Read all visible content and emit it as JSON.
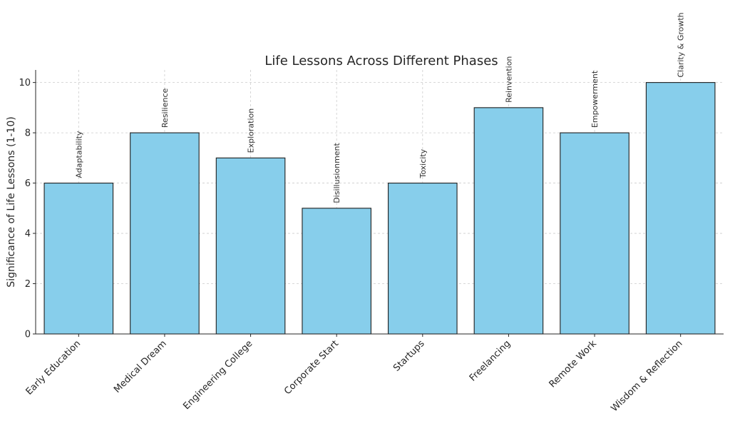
{
  "chart_data": {
    "type": "bar",
    "title": "Life Lessons Across Different Phases",
    "xlabel": "",
    "ylabel": "Significance of Life Lessons (1-10)",
    "ylim": [
      0,
      10.5
    ],
    "yticks": [
      0,
      2,
      4,
      6,
      8,
      10
    ],
    "grid": true,
    "bar_color": "#87ceeb",
    "edge_color": "#1f1f1f",
    "categories": [
      "Early Education",
      "Medical Dream",
      "Engineering College",
      "Corporate Start",
      "Startups",
      "Freelancing",
      "Remote Work",
      "Wisdom & Reflection"
    ],
    "values": [
      6,
      8,
      7,
      5,
      6,
      9,
      8,
      10
    ],
    "annotations": [
      "Adaptability",
      "Resilience",
      "Exploration",
      "Disillusionment",
      "Toxicity",
      "Reinvention",
      "Empowerment",
      "Clarity & Growth"
    ]
  }
}
